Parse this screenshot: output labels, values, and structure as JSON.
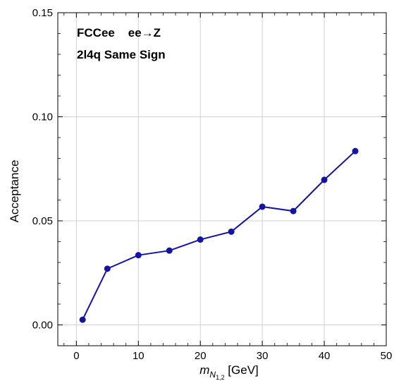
{
  "chart_data": {
    "type": "line",
    "annotations": [
      "FCCee    ee→Z",
      "2l4q Same Sign"
    ],
    "ylabel": "Acceptance",
    "xlabel_main": "m",
    "xlabel_sub": "N",
    "xlabel_subsub": "1,2",
    "xlabel_unit": " [GeV]",
    "xlim": [
      -3,
      50
    ],
    "ylim": [
      -0.01,
      0.15
    ],
    "x_ticks": [
      "0",
      "10",
      "20",
      "30",
      "40",
      "50"
    ],
    "y_ticks": [
      "0.00",
      "0.05",
      "0.10",
      "0.15"
    ],
    "grid": true,
    "line_color": "#1414a0",
    "series": [
      {
        "x": [
          1,
          5,
          10,
          15,
          20,
          25,
          30,
          35,
          40,
          45
        ],
        "y": [
          0.0025,
          0.027,
          0.0335,
          0.0357,
          0.041,
          0.0448,
          0.0568,
          0.0547,
          0.0697,
          0.0835
        ]
      }
    ]
  }
}
